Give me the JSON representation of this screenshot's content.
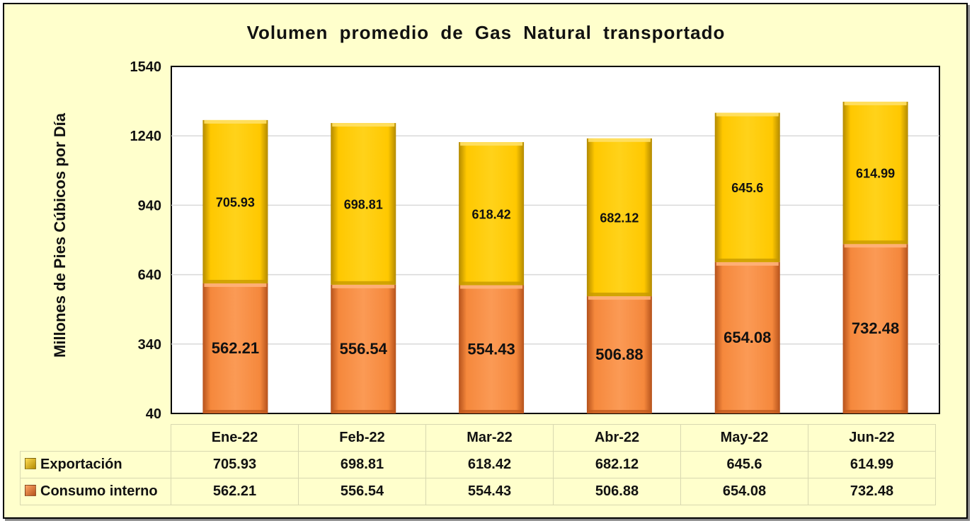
{
  "chart_data": {
    "type": "bar",
    "stacked": true,
    "title": "Volumen promedio de Gas Natural transportado",
    "ylabel": "Millones de Pies Cúbicos por Día",
    "xlabel": "",
    "ylim": [
      40,
      1540
    ],
    "yticks": [
      "1540",
      "1240",
      "940",
      "640",
      "340",
      "40"
    ],
    "categories": [
      "Ene-22",
      "Feb-22",
      "Mar-22",
      "Abr-22",
      "May-22",
      "Jun-22"
    ],
    "series": [
      {
        "name": "Consumo interno",
        "color": "#f5883c",
        "values": [
          562.21,
          556.54,
          554.43,
          506.88,
          654.08,
          732.48
        ],
        "labels": [
          "562.21",
          "556.54",
          "554.43",
          "506.88",
          "654.08",
          "732.48"
        ]
      },
      {
        "name": "Exportación",
        "color": "#ffcc00",
        "values": [
          705.93,
          698.81,
          618.42,
          682.12,
          645.6,
          614.99
        ],
        "labels": [
          "705.93",
          "698.81",
          "618.42",
          "682.12",
          "645.6",
          "614.99"
        ]
      }
    ],
    "grid": true,
    "legend": "data-table-below"
  }
}
